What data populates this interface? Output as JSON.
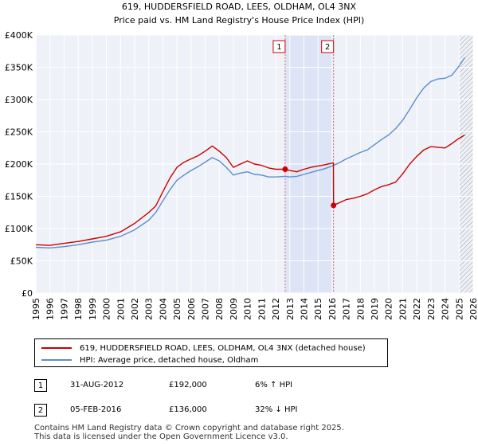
{
  "chart_data": {
    "type": "line",
    "title": "619, HUDDERSFIELD ROAD, LEES, OLDHAM, OL4 3NX",
    "subtitle": "Price paid vs. HM Land Registry's House Price Index (HPI)",
    "xlim": [
      1995,
      2026
    ],
    "ylim": [
      0,
      400000
    ],
    "x_ticks": [
      "1995",
      "1996",
      "1997",
      "1998",
      "1999",
      "2000",
      "2001",
      "2002",
      "2003",
      "2004",
      "2005",
      "2006",
      "2007",
      "2008",
      "2009",
      "2010",
      "2011",
      "2012",
      "2013",
      "2014",
      "2015",
      "2016",
      "2017",
      "2018",
      "2019",
      "2020",
      "2021",
      "2022",
      "2023",
      "2024",
      "2025",
      "2026"
    ],
    "y_ticks": [
      {
        "value": 0,
        "label": "£0"
      },
      {
        "value": 50000,
        "label": "£50K"
      },
      {
        "value": 100000,
        "label": "£100K"
      },
      {
        "value": 150000,
        "label": "£150K"
      },
      {
        "value": 200000,
        "label": "£200K"
      },
      {
        "value": 250000,
        "label": "£250K"
      },
      {
        "value": 300000,
        "label": "£300K"
      },
      {
        "value": 350000,
        "label": "£350K"
      },
      {
        "value": 400000,
        "label": "£400K"
      }
    ],
    "grid": true,
    "shaded_region": [
      2012.67,
      2016.1
    ],
    "forecast_start": 2025.0,
    "series": [
      {
        "name": "619, HUDDERSFIELD ROAD, LEES, OLDHAM, OL4 3NX (detached house)",
        "color": "#cc0000",
        "x": [
          1995,
          1996,
          1997,
          1998,
          1999,
          2000,
          2001,
          2002,
          2003,
          2003.5,
          2004,
          2004.5,
          2005,
          2005.5,
          2006,
          2006.5,
          2007,
          2007.5,
          2008,
          2008.5,
          2009,
          2009.5,
          2010,
          2010.5,
          2011,
          2011.5,
          2012,
          2012.67,
          2013,
          2013.5,
          2014,
          2014.5,
          2015,
          2015.5,
          2016.09,
          2016.1,
          2016.5,
          2017,
          2017.5,
          2018,
          2018.5,
          2019,
          2019.5,
          2020,
          2020.5,
          2021,
          2021.5,
          2022,
          2022.5,
          2023,
          2023.5,
          2024,
          2024.5,
          2025,
          2025.4
        ],
        "y": [
          75000,
          74000,
          77000,
          80000,
          84000,
          88000,
          95000,
          108000,
          125000,
          135000,
          157000,
          178000,
          195000,
          203000,
          208000,
          213000,
          220000,
          228000,
          220000,
          210000,
          195000,
          200000,
          205000,
          200000,
          198000,
          194000,
          192000,
          192000,
          190000,
          188000,
          192000,
          195000,
          197000,
          199000,
          202000,
          136000,
          140000,
          145000,
          147000,
          150000,
          154000,
          160000,
          165000,
          168000,
          172000,
          185000,
          200000,
          212000,
          222000,
          227000,
          226000,
          225000,
          232000,
          240000,
          245000
        ]
      },
      {
        "name": "HPI: Average price, detached house, Oldham",
        "color": "#5b8ecf",
        "x": [
          1995,
          1996,
          1997,
          1998,
          1999,
          2000,
          2001,
          2002,
          2003,
          2003.5,
          2004,
          2004.5,
          2005,
          2005.5,
          2006,
          2006.5,
          2007,
          2007.5,
          2008,
          2008.5,
          2009,
          2009.5,
          2010,
          2010.5,
          2011,
          2011.5,
          2012,
          2012.67,
          2013,
          2013.5,
          2014,
          2014.5,
          2015,
          2015.5,
          2016,
          2016.5,
          2017,
          2017.5,
          2018,
          2018.5,
          2019,
          2019.5,
          2020,
          2020.5,
          2021,
          2021.5,
          2022,
          2022.5,
          2023,
          2023.5,
          2024,
          2024.5,
          2025,
          2025.4
        ],
        "y": [
          71000,
          70000,
          72000,
          75000,
          79000,
          82000,
          88000,
          98000,
          113000,
          125000,
          143000,
          160000,
          175000,
          183000,
          190000,
          196000,
          203000,
          210000,
          205000,
          195000,
          183000,
          186000,
          188000,
          184000,
          183000,
          180000,
          180000,
          181000,
          180000,
          181000,
          184000,
          187000,
          190000,
          193000,
          197000,
          202000,
          208000,
          213000,
          218000,
          222000,
          230000,
          238000,
          245000,
          255000,
          268000,
          285000,
          303000,
          318000,
          328000,
          332000,
          333000,
          338000,
          352000,
          365000
        ]
      }
    ],
    "markers": [
      {
        "label": "1",
        "x": 2012.67,
        "y": 192000
      },
      {
        "label": "2",
        "x": 2016.1,
        "y": 136000
      }
    ]
  },
  "legend": {
    "property_label": "619, HUDDERSFIELD ROAD, LEES, OLDHAM, OL4 3NX (detached house)",
    "hpi_label": "HPI: Average price, detached house, Oldham",
    "property_color": "#cc0000",
    "hpi_color": "#5b8ecf"
  },
  "annotations": [
    {
      "id": "1",
      "date": "31-AUG-2012",
      "price": "£192,000",
      "hpi": "6% ↑ HPI"
    },
    {
      "id": "2",
      "date": "05-FEB-2016",
      "price": "£136,000",
      "hpi": "32% ↓ HPI"
    }
  ],
  "footer": {
    "line1": "Contains HM Land Registry data © Crown copyright and database right 2025.",
    "line2": "This data is licensed under the Open Government Licence v3.0."
  }
}
